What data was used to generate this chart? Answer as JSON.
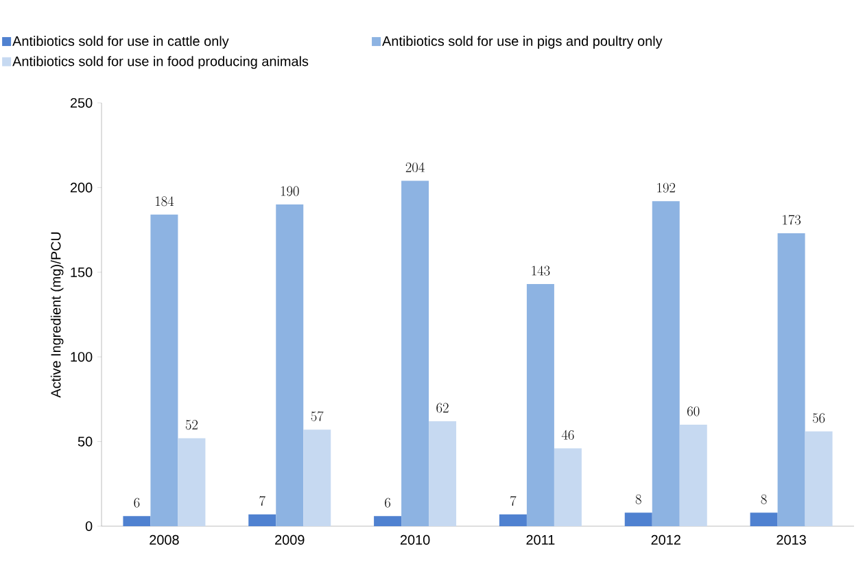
{
  "chart_data": {
    "type": "bar",
    "ylabel": "Active Ingredient (mg)/PCU",
    "categories": [
      "2008",
      "2009",
      "2010",
      "2011",
      "2012",
      "2013"
    ],
    "series": [
      {
        "name": "Antibiotics sold for use in cattle only",
        "color": "#4f81d0",
        "values": [
          6,
          7,
          6,
          7,
          8,
          8
        ]
      },
      {
        "name": "Antibiotics sold for use in pigs and poultry only",
        "color": "#8db3e2",
        "values": [
          184,
          190,
          204,
          143,
          192,
          173
        ]
      },
      {
        "name": "Antibiotics sold for use in food producing animals",
        "color": "#c6d9f1",
        "values": [
          52,
          57,
          62,
          46,
          60,
          56
        ]
      }
    ],
    "ylim": [
      0,
      250
    ],
    "yticks": [
      0,
      50,
      100,
      150,
      200,
      250
    ],
    "data_labels": true,
    "legend": "top left",
    "grid": false
  }
}
